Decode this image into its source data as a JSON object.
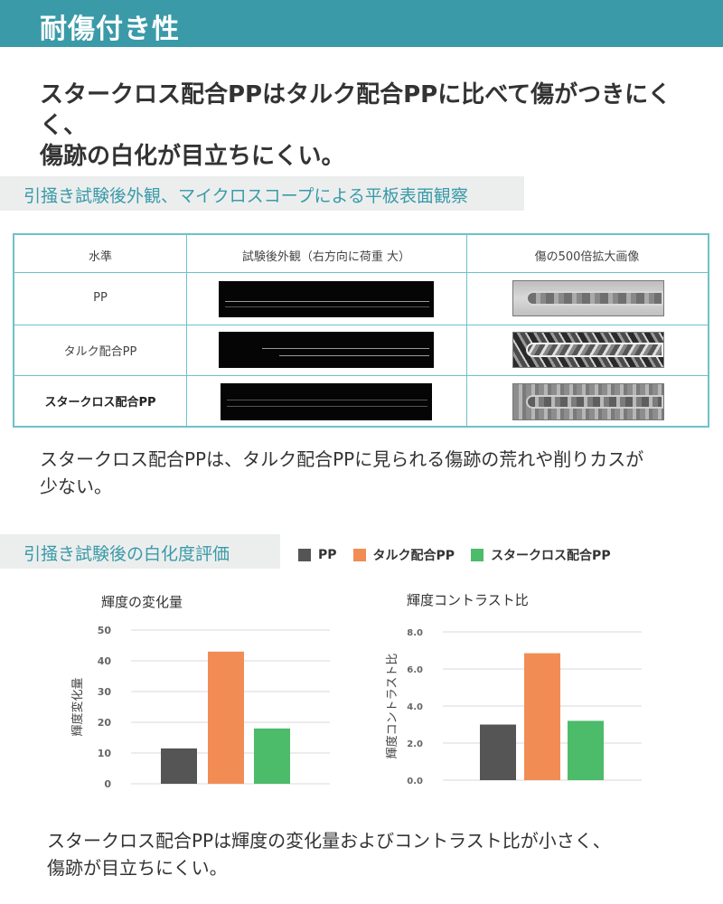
{
  "header": {
    "title": "耐傷付き性"
  },
  "lead": {
    "line1": "スタークロス配合PPはタルク配合PPに比べて傷がつきにくく、",
    "line2": "傷跡の白化が目立ちにくい。"
  },
  "section1": {
    "title": "引掻き試験後外観、マイクロスコープによる平板表面観察"
  },
  "table": {
    "headers": [
      "水準",
      "試験後外観（右方向に荷重 大）",
      "傷の500倍拡大画像"
    ],
    "rows": [
      {
        "label": "PP"
      },
      {
        "label": "タルク配合PP"
      },
      {
        "label": "スタークロス配合PP"
      }
    ]
  },
  "para1": {
    "line1": "スタークロス配合PPは、タルク配合PPに見られる傷跡の荒れや削りカスが",
    "line2": "少ない。"
  },
  "section2": {
    "title": "引掻き試験後の白化度評価"
  },
  "legend": [
    {
      "label": "PP",
      "color": "#555555"
    },
    {
      "label": "タルク配合PP",
      "color": "#f28c55"
    },
    {
      "label": "スタークロス配合PP",
      "color": "#4cbb6a"
    }
  ],
  "chart_data": [
    {
      "type": "bar",
      "title": "輝度の変化量",
      "ylabel": "輝度変化量",
      "xlabel": "",
      "categories": [
        "PP",
        "タルク配合PP",
        "スタークロス配合PP"
      ],
      "values": [
        11.5,
        43,
        18
      ],
      "colors": [
        "#555555",
        "#f28c55",
        "#4cbb6a"
      ],
      "ylim": [
        0,
        50
      ],
      "yticks": [
        "0",
        "10",
        "20",
        "30",
        "40",
        "50"
      ],
      "grid": true
    },
    {
      "type": "bar",
      "title": "輝度コントラスト比",
      "ylabel": "輝度コントラスト比",
      "xlabel": "",
      "categories": [
        "PP",
        "タルク配合PP",
        "スタークロス配合PP"
      ],
      "values": [
        3.0,
        6.85,
        3.2
      ],
      "colors": [
        "#555555",
        "#f28c55",
        "#4cbb6a"
      ],
      "ylim": [
        0,
        8
      ],
      "yticks": [
        "0.0",
        "2.0",
        "4.0",
        "6.0",
        "8.0"
      ],
      "grid": true
    }
  ],
  "para2": {
    "line1": "スタークロス配合PPは輝度の変化量およびコントラスト比が小さく、",
    "line2": "傷跡が目立ちにくい。"
  }
}
